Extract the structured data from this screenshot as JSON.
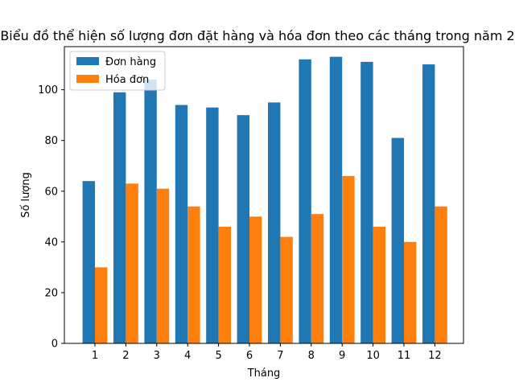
{
  "chart_data": {
    "type": "bar",
    "title": "Biểu đồ thể hiện số lượng đơn đặt hàng và hóa đơn theo các tháng trong năm 2",
    "xlabel": "Tháng",
    "ylabel": "Số lượng",
    "categories": [
      "1",
      "2",
      "3",
      "4",
      "5",
      "6",
      "7",
      "8",
      "9",
      "10",
      "11",
      "12"
    ],
    "ylim": [
      0,
      117
    ],
    "yticks": [
      0,
      20,
      40,
      60,
      80,
      100
    ],
    "legend_position": "top-left",
    "grid": false,
    "series": [
      {
        "name": "Đơn hàng",
        "color": "#1f77b4",
        "values": [
          64,
          99,
          104,
          94,
          93,
          90,
          95,
          112,
          113,
          111,
          81,
          110
        ]
      },
      {
        "name": "Hóa đơn",
        "color": "#ff7f0e",
        "values": [
          30,
          63,
          61,
          54,
          46,
          50,
          42,
          51,
          66,
          46,
          40,
          54
        ]
      }
    ]
  }
}
